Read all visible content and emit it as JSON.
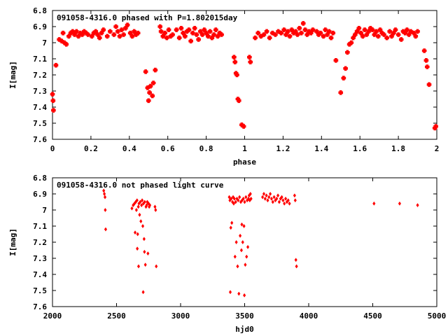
{
  "chart_data": [
    {
      "type": "scatter",
      "title": "091058-4316.0 phased with P=1.802015day",
      "xlabel": "phase",
      "ylabel": "I[mag]",
      "xlim": [
        0,
        2
      ],
      "ylim": [
        7.6,
        6.8
      ],
      "y_inverted": true,
      "xticks": [
        "0",
        "0.2",
        "0.4",
        "0.6",
        "0.8",
        "1",
        "1.2",
        "1.4",
        "1.6",
        "1.8",
        "2"
      ],
      "yticks": [
        "6.8",
        "6.9",
        "7",
        "7.1",
        "7.2",
        "7.3",
        "7.4",
        "7.5",
        "7.6"
      ],
      "grid": false,
      "marker_color": "#ff0000",
      "points": [
        [
          0.0,
          7.32
        ],
        [
          0.003,
          7.36
        ],
        [
          0.005,
          7.42
        ],
        [
          0.018,
          7.14
        ],
        [
          0.035,
          6.98
        ],
        [
          0.048,
          6.99
        ],
        [
          0.055,
          6.94
        ],
        [
          0.062,
          7.0
        ],
        [
          0.072,
          7.01
        ],
        [
          0.085,
          6.96
        ],
        [
          0.095,
          6.94
        ],
        [
          0.105,
          6.93
        ],
        [
          0.115,
          6.95
        ],
        [
          0.125,
          6.93
        ],
        [
          0.135,
          6.96
        ],
        [
          0.145,
          6.94
        ],
        [
          0.155,
          6.95
        ],
        [
          0.165,
          6.93
        ],
        [
          0.175,
          6.94
        ],
        [
          0.185,
          6.95
        ],
        [
          0.205,
          6.96
        ],
        [
          0.215,
          6.94
        ],
        [
          0.225,
          6.93
        ],
        [
          0.235,
          6.95
        ],
        [
          0.245,
          6.97
        ],
        [
          0.255,
          6.94
        ],
        [
          0.265,
          6.92
        ],
        [
          0.285,
          6.96
        ],
        [
          0.3,
          6.93
        ],
        [
          0.32,
          6.95
        ],
        [
          0.33,
          6.9
        ],
        [
          0.34,
          6.93
        ],
        [
          0.35,
          6.96
        ],
        [
          0.36,
          6.92
        ],
        [
          0.37,
          6.95
        ],
        [
          0.38,
          6.91
        ],
        [
          0.39,
          6.89
        ],
        [
          0.405,
          6.94
        ],
        [
          0.415,
          6.96
        ],
        [
          0.425,
          6.93
        ],
        [
          0.435,
          6.95
        ],
        [
          0.445,
          6.94
        ],
        [
          0.485,
          7.18
        ],
        [
          0.495,
          7.28
        ],
        [
          0.5,
          7.36
        ],
        [
          0.505,
          7.31
        ],
        [
          0.51,
          7.27
        ],
        [
          0.52,
          7.33
        ],
        [
          0.525,
          7.25
        ],
        [
          0.535,
          7.17
        ],
        [
          0.56,
          6.9
        ],
        [
          0.565,
          6.93
        ],
        [
          0.575,
          6.96
        ],
        [
          0.585,
          6.94
        ],
        [
          0.595,
          6.97
        ],
        [
          0.605,
          6.92
        ],
        [
          0.615,
          6.96
        ],
        [
          0.625,
          6.95
        ],
        [
          0.645,
          6.92
        ],
        [
          0.66,
          6.97
        ],
        [
          0.67,
          6.91
        ],
        [
          0.68,
          6.94
        ],
        [
          0.69,
          6.96
        ],
        [
          0.7,
          6.93
        ],
        [
          0.71,
          6.92
        ],
        [
          0.72,
          6.99
        ],
        [
          0.73,
          6.94
        ],
        [
          0.74,
          6.91
        ],
        [
          0.75,
          6.95
        ],
        [
          0.76,
          6.98
        ],
        [
          0.77,
          6.93
        ],
        [
          0.78,
          6.95
        ],
        [
          0.79,
          6.92
        ],
        [
          0.8,
          6.94
        ],
        [
          0.81,
          6.96
        ],
        [
          0.82,
          6.93
        ],
        [
          0.83,
          6.97
        ],
        [
          0.84,
          6.95
        ],
        [
          0.85,
          6.92
        ],
        [
          0.86,
          6.96
        ],
        [
          0.87,
          6.94
        ],
        [
          0.88,
          6.95
        ],
        [
          0.945,
          7.09
        ],
        [
          0.95,
          7.12
        ],
        [
          0.955,
          7.19
        ],
        [
          0.96,
          7.2
        ],
        [
          0.965,
          7.35
        ],
        [
          0.97,
          7.36
        ],
        [
          0.985,
          7.51
        ],
        [
          0.995,
          7.52
        ],
        [
          1.025,
          7.09
        ],
        [
          1.03,
          7.12
        ],
        [
          1.055,
          6.97
        ],
        [
          1.07,
          6.94
        ],
        [
          1.085,
          6.96
        ],
        [
          1.1,
          6.95
        ],
        [
          1.115,
          6.93
        ],
        [
          1.13,
          6.97
        ],
        [
          1.145,
          6.94
        ],
        [
          1.16,
          6.95
        ],
        [
          1.175,
          6.93
        ],
        [
          1.19,
          6.94
        ],
        [
          1.205,
          6.92
        ],
        [
          1.215,
          6.95
        ],
        [
          1.225,
          6.93
        ],
        [
          1.235,
          6.96
        ],
        [
          1.245,
          6.92
        ],
        [
          1.255,
          6.94
        ],
        [
          1.265,
          6.93
        ],
        [
          1.275,
          6.95
        ],
        [
          1.285,
          6.91
        ],
        [
          1.295,
          6.94
        ],
        [
          1.305,
          6.88
        ],
        [
          1.315,
          6.92
        ],
        [
          1.325,
          6.95
        ],
        [
          1.335,
          6.93
        ],
        [
          1.345,
          6.94
        ],
        [
          1.355,
          6.92
        ],
        [
          1.375,
          6.93
        ],
        [
          1.385,
          6.95
        ],
        [
          1.395,
          6.94
        ],
        [
          1.41,
          6.96
        ],
        [
          1.42,
          6.92
        ],
        [
          1.43,
          6.95
        ],
        [
          1.44,
          6.93
        ],
        [
          1.45,
          6.97
        ],
        [
          1.46,
          6.94
        ],
        [
          1.475,
          7.11
        ],
        [
          1.5,
          7.31
        ],
        [
          1.515,
          7.22
        ],
        [
          1.525,
          7.16
        ],
        [
          1.535,
          7.06
        ],
        [
          1.545,
          7.01
        ],
        [
          1.555,
          7.0
        ],
        [
          1.565,
          6.97
        ],
        [
          1.575,
          6.95
        ],
        [
          1.585,
          6.93
        ],
        [
          1.595,
          6.91
        ],
        [
          1.605,
          6.94
        ],
        [
          1.615,
          6.96
        ],
        [
          1.625,
          6.92
        ],
        [
          1.635,
          6.95
        ],
        [
          1.645,
          6.93
        ],
        [
          1.655,
          6.91
        ],
        [
          1.665,
          6.92
        ],
        [
          1.675,
          6.95
        ],
        [
          1.685,
          6.93
        ],
        [
          1.695,
          6.96
        ],
        [
          1.705,
          6.92
        ],
        [
          1.715,
          6.94
        ],
        [
          1.725,
          6.95
        ],
        [
          1.74,
          6.97
        ],
        [
          1.755,
          6.93
        ],
        [
          1.765,
          6.96
        ],
        [
          1.775,
          6.94
        ],
        [
          1.785,
          6.92
        ],
        [
          1.8,
          6.95
        ],
        [
          1.815,
          6.98
        ],
        [
          1.825,
          6.93
        ],
        [
          1.835,
          6.94
        ],
        [
          1.845,
          6.92
        ],
        [
          1.855,
          6.95
        ],
        [
          1.865,
          6.93
        ],
        [
          1.88,
          6.94
        ],
        [
          1.89,
          6.96
        ],
        [
          1.9,
          6.93
        ],
        [
          1.935,
          7.05
        ],
        [
          1.945,
          7.11
        ],
        [
          1.95,
          7.15
        ],
        [
          1.96,
          7.26
        ],
        [
          1.99,
          7.53
        ],
        [
          1.995,
          7.52
        ]
      ]
    },
    {
      "type": "scatter",
      "title": "091058-4316.0 not phased light curve",
      "xlabel": "hjd0",
      "ylabel": "I[mag]",
      "xlim": [
        2000,
        5000
      ],
      "ylim": [
        7.6,
        6.8
      ],
      "y_inverted": true,
      "xticks": [
        "2000",
        "2500",
        "3000",
        "3500",
        "4000",
        "4500",
        "5000"
      ],
      "yticks": [
        "6.8",
        "6.9",
        "7",
        "7.1",
        "7.2",
        "7.3",
        "7.4",
        "7.5",
        "7.6"
      ],
      "grid": false,
      "marker_color": "#ff0000",
      "points": [
        [
          2400,
          6.88
        ],
        [
          2405,
          6.9
        ],
        [
          2410,
          6.92
        ],
        [
          2412,
          7.0
        ],
        [
          2415,
          7.12
        ],
        [
          2620,
          6.99
        ],
        [
          2630,
          6.97
        ],
        [
          2640,
          6.96
        ],
        [
          2645,
          7.14
        ],
        [
          2650,
          6.95
        ],
        [
          2655,
          7.0
        ],
        [
          2660,
          6.94
        ],
        [
          2662,
          7.24
        ],
        [
          2665,
          7.15
        ],
        [
          2670,
          6.98
        ],
        [
          2672,
          7.35
        ],
        [
          2675,
          6.96
        ],
        [
          2680,
          7.03
        ],
        [
          2685,
          6.95
        ],
        [
          2690,
          7.07
        ],
        [
          2695,
          6.97
        ],
        [
          2700,
          6.94
        ],
        [
          2705,
          7.1
        ],
        [
          2708,
          7.51
        ],
        [
          2710,
          6.96
        ],
        [
          2715,
          7.18
        ],
        [
          2718,
          7.26
        ],
        [
          2720,
          6.95
        ],
        [
          2725,
          7.34
        ],
        [
          2730,
          6.98
        ],
        [
          2735,
          6.97
        ],
        [
          2740,
          6.95
        ],
        [
          2745,
          7.27
        ],
        [
          2750,
          6.96
        ],
        [
          2755,
          6.98
        ],
        [
          2760,
          6.97
        ],
        [
          2800,
          6.98
        ],
        [
          2805,
          7.0
        ],
        [
          2810,
          7.35
        ],
        [
          3380,
          6.92
        ],
        [
          3385,
          6.94
        ],
        [
          3388,
          7.51
        ],
        [
          3392,
          7.11
        ],
        [
          3395,
          6.93
        ],
        [
          3400,
          7.08
        ],
        [
          3405,
          6.95
        ],
        [
          3410,
          6.92
        ],
        [
          3415,
          6.96
        ],
        [
          3420,
          6.93
        ],
        [
          3425,
          7.29
        ],
        [
          3430,
          6.95
        ],
        [
          3435,
          7.2
        ],
        [
          3440,
          6.93
        ],
        [
          3445,
          7.35
        ],
        [
          3450,
          6.94
        ],
        [
          3455,
          7.52
        ],
        [
          3460,
          6.92
        ],
        [
          3465,
          7.16
        ],
        [
          3470,
          6.95
        ],
        [
          3475,
          7.25
        ],
        [
          3478,
          7.09
        ],
        [
          3480,
          6.94
        ],
        [
          3485,
          7.2
        ],
        [
          3490,
          6.93
        ],
        [
          3495,
          7.1
        ],
        [
          3498,
          7.53
        ],
        [
          3500,
          6.95
        ],
        [
          3505,
          7.34
        ],
        [
          3510,
          6.92
        ],
        [
          3515,
          7.29
        ],
        [
          3520,
          6.94
        ],
        [
          3525,
          7.23
        ],
        [
          3530,
          6.93
        ],
        [
          3535,
          6.91
        ],
        [
          3540,
          6.94
        ],
        [
          3545,
          6.9
        ],
        [
          3550,
          6.93
        ],
        [
          3640,
          6.92
        ],
        [
          3650,
          6.9
        ],
        [
          3660,
          6.93
        ],
        [
          3670,
          6.91
        ],
        [
          3680,
          6.94
        ],
        [
          3690,
          6.92
        ],
        [
          3700,
          6.9
        ],
        [
          3710,
          6.93
        ],
        [
          3720,
          6.95
        ],
        [
          3730,
          6.92
        ],
        [
          3740,
          6.94
        ],
        [
          3750,
          6.93
        ],
        [
          3760,
          6.91
        ],
        [
          3770,
          6.95
        ],
        [
          3780,
          6.93
        ],
        [
          3790,
          6.92
        ],
        [
          3800,
          6.94
        ],
        [
          3810,
          6.96
        ],
        [
          3820,
          6.93
        ],
        [
          3830,
          6.95
        ],
        [
          3840,
          6.94
        ],
        [
          3850,
          6.96
        ],
        [
          3890,
          6.91
        ],
        [
          3895,
          6.94
        ],
        [
          3900,
          7.31
        ],
        [
          3905,
          7.35
        ],
        [
          4510,
          6.96
        ],
        [
          4710,
          6.96
        ],
        [
          4850,
          6.97
        ]
      ]
    }
  ]
}
